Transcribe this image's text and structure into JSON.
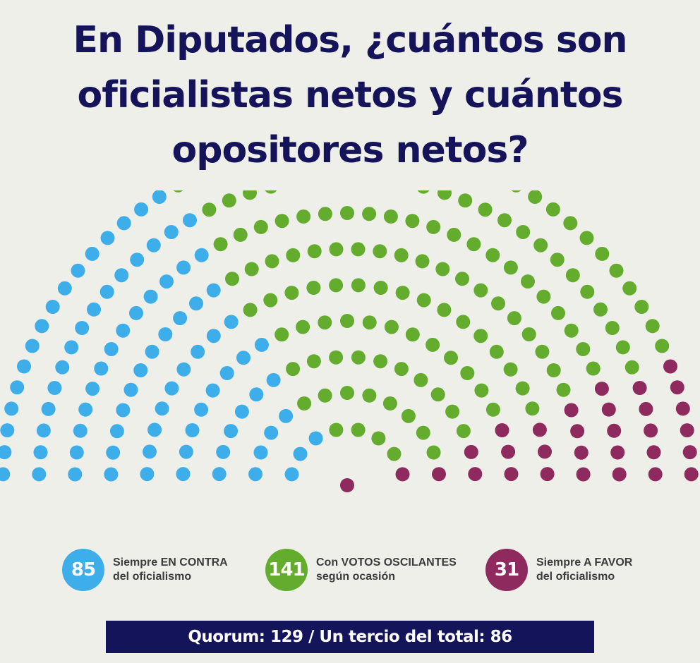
{
  "title": {
    "line1": "En Diputados, ¿cuántos son",
    "line2": "oficialistas netos y cuántos",
    "line3": "opositores netos?"
  },
  "colors": {
    "contra": "#3eaeea",
    "oscilantes": "#64ac2e",
    "favor": "#8e2a5d",
    "quorum_bg": "#14145a",
    "title": "#15145a"
  },
  "chart_data": {
    "type": "hemicycle",
    "total_seats": 257,
    "series": [
      {
        "key": "contra",
        "value": 85,
        "label_line1": "Siempre EN CONTRA",
        "label_line2": "del oficialismo"
      },
      {
        "key": "oscilantes",
        "value": 141,
        "label_line1": "Con VOTOS OSCILANTES",
        "label_line2": "según ocasión"
      },
      {
        "key": "favor",
        "value": 31,
        "label_line1": "Siempre A FAVOR",
        "label_line2": "del oficialismo"
      }
    ],
    "quorum_text": "Quorum: 129 / Un tercio del total: 86"
  }
}
